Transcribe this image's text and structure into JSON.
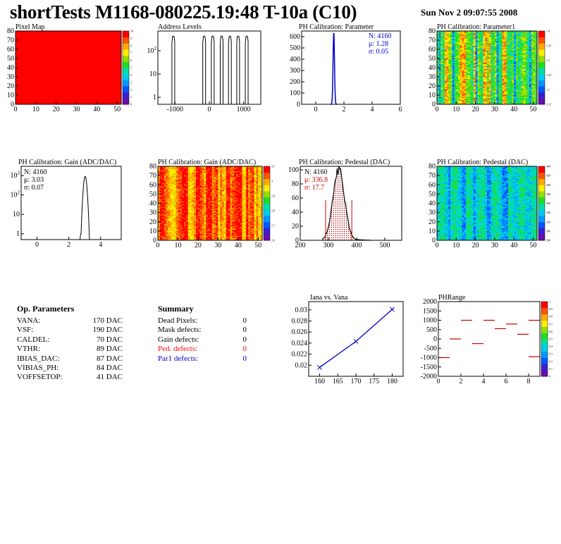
{
  "header": {
    "title": "shortTests M1168-080225.19:48 T-10a (C10)",
    "date": "Sun Nov  2 09:07:55 2008"
  },
  "palette": [
    "#6a0dad",
    "#3a1fd0",
    "#0055ff",
    "#0099ff",
    "#00ccee",
    "#00e0a0",
    "#22dd22",
    "#99dd00",
    "#ffee00",
    "#ffaa00",
    "#ff5500",
    "#ff0000"
  ],
  "chart_data": [
    {
      "id": "pixel_map",
      "type": "heatmap",
      "title": "Pixel Map",
      "xlim": [
        0,
        52
      ],
      "ylim": [
        0,
        80
      ],
      "x_ticks": [
        "0",
        "10",
        "20",
        "30",
        "40",
        "50"
      ],
      "y_ticks": [
        "0",
        "10",
        "20",
        "30",
        "40",
        "50",
        "60",
        "70",
        "80"
      ],
      "uniform_value": 10,
      "fill": "#ff0000",
      "colorbar_ticks": [
        "0",
        "1",
        "2",
        "3",
        "4",
        "5",
        "6",
        "7",
        "8",
        "9",
        "10"
      ]
    },
    {
      "id": "address_levels",
      "type": "bar",
      "title": "Address Levels",
      "yscale": "log",
      "xlim": [
        -1500,
        1500
      ],
      "x_ticks": [
        "-1000",
        "0",
        "1000"
      ],
      "y_ticks": [
        "1",
        "10",
        "10^2"
      ],
      "peaks_x": [
        -1050,
        -150,
        100,
        360,
        600,
        840,
        1090
      ],
      "peak_height": 420
    },
    {
      "id": "ph_parameter",
      "type": "bar",
      "title": "PH Calibration: Parameter",
      "xlim": [
        -1,
        6
      ],
      "ylim": [
        0,
        650
      ],
      "x_ticks": [
        "0",
        "2",
        "4",
        "6"
      ],
      "y_ticks": [
        "0",
        "100",
        "200",
        "300",
        "400",
        "500",
        "600"
      ],
      "mean": 1.28,
      "sigma": 0.05,
      "peak": 640,
      "stats": {
        "entries": "N: 4160",
        "mean": "μ: 1.28",
        "sigma": "σ: 0.05"
      },
      "color": "#0000cc"
    },
    {
      "id": "ph_parameter1",
      "type": "heatmap",
      "title": "PH Calibration: Parameter1",
      "xlim": [
        0,
        52
      ],
      "ylim": [
        0,
        80
      ],
      "x_ticks": [
        "0",
        "10",
        "20",
        "30",
        "40",
        "50"
      ],
      "y_ticks": [
        "0",
        "10",
        "20",
        "30",
        "40",
        "50",
        "60",
        "70",
        "80"
      ],
      "colorbar_ticks": [
        "1.15",
        "1.2",
        "1.25",
        "1.3",
        "1.35",
        "1.4"
      ],
      "hot_columns": [
        4,
        5,
        12,
        13,
        14,
        19,
        24,
        25,
        27,
        34,
        35
      ],
      "cold_columns": [
        1,
        8,
        20,
        31,
        40,
        48
      ]
    },
    {
      "id": "ph_gain_hist",
      "type": "bar",
      "title": "PH Calibration: Gain (ADC/DAC)",
      "yscale": "log",
      "xlim": [
        -1,
        5.3
      ],
      "x_ticks": [
        "0",
        "2",
        "4"
      ],
      "y_ticks": [
        "1",
        "10",
        "10^2",
        "10^3"
      ],
      "mean": 3.03,
      "sigma": 0.07,
      "peak": 900,
      "stats": {
        "entries": "N: 4160",
        "mean": "μ: 3.03",
        "sigma": "σ: 0.07"
      }
    },
    {
      "id": "ph_gain_map",
      "type": "heatmap",
      "title": "PH Calibration: Gain (ADC/DAC)",
      "xlim": [
        0,
        52
      ],
      "ylim": [
        0,
        80
      ],
      "x_ticks": [
        "0",
        "10",
        "20",
        "30",
        "40",
        "50"
      ],
      "y_ticks": [
        "0",
        "10",
        "20",
        "30",
        "40",
        "50",
        "60",
        "70",
        "80"
      ],
      "colorbar_ticks": [
        "2.6",
        "2.7",
        "2.8",
        "2.9",
        "3",
        "3.1"
      ],
      "hot_columns": [
        1,
        2,
        12,
        13,
        14,
        19,
        20,
        24,
        25,
        26,
        34,
        35,
        39,
        40,
        41,
        44
      ],
      "cold_columns": [
        8,
        30,
        48,
        50
      ]
    },
    {
      "id": "ph_pedestal_hist",
      "type": "bar",
      "title": "PH Calibration: Pedestal (DAC)",
      "xlim": [
        200,
        560
      ],
      "ylim": [
        0,
        105
      ],
      "x_ticks": [
        "200",
        "300",
        "400",
        "500"
      ],
      "y_ticks": [
        "0",
        "20",
        "40",
        "60",
        "80",
        "100"
      ],
      "mean": 336.8,
      "sigma": 17.7,
      "peak": 100,
      "cut_lines_x": [
        290,
        383
      ],
      "stats": {
        "entries": "N: 4160",
        "mean": "μ: 336.8",
        "sigma": "σ: 17.7"
      },
      "fill_color": "#aa0000"
    },
    {
      "id": "ph_pedestal_map",
      "type": "heatmap",
      "title": "PH Calibration: Pedestal (DAC)",
      "xlim": [
        0,
        52
      ],
      "ylim": [
        0,
        80
      ],
      "x_ticks": [
        "0",
        "10",
        "20",
        "30",
        "40",
        "50"
      ],
      "y_ticks": [
        "0",
        "10",
        "20",
        "30",
        "40",
        "50",
        "60",
        "70",
        "80"
      ],
      "colorbar_ticks": [
        "280",
        "300",
        "320",
        "340",
        "360",
        "380",
        "400",
        "420",
        "440"
      ],
      "hot_columns": [],
      "cold_columns": [
        6,
        13,
        14,
        19,
        26,
        27,
        34,
        35,
        36
      ]
    },
    {
      "id": "iana_vs_vana",
      "type": "line",
      "title": "Iana vs. Vana",
      "xlim": [
        157,
        183
      ],
      "ylim": [
        0.018,
        0.0315
      ],
      "x_ticks": [
        "160",
        "165",
        "170",
        "175",
        "180"
      ],
      "y_ticks": [
        "0.02",
        "0.022",
        "0.024",
        "0.026",
        "0.028",
        "0.03"
      ],
      "x": [
        160,
        170,
        180
      ],
      "y": [
        0.0196,
        0.0243,
        0.0301
      ],
      "color": "#0000cc"
    },
    {
      "id": "phrange",
      "type": "scatter",
      "title": "PHRange",
      "xlim": [
        0,
        9
      ],
      "ylim": [
        -2000,
        2000
      ],
      "x_ticks": [
        "0",
        "2",
        "4",
        "6",
        "8"
      ],
      "y_ticks": [
        "-2000",
        "-1500",
        "-1000",
        "-500",
        "0",
        "500",
        "1000",
        "1500",
        "2000"
      ],
      "segments": [
        [
          0.5,
          -1000
        ],
        [
          1.5,
          0
        ],
        [
          2.5,
          1000
        ],
        [
          3.5,
          -250
        ],
        [
          4.5,
          1000
        ],
        [
          5.5,
          550
        ],
        [
          6.5,
          800
        ],
        [
          7.5,
          250
        ],
        [
          8.5,
          1000
        ],
        [
          8.5,
          -950
        ]
      ],
      "colorbar_ticks": [
        "0",
        "0.1",
        "0.2",
        "0.3",
        "0.4",
        "0.5",
        "0.6",
        "0.7",
        "0.8",
        "0.9",
        "1"
      ],
      "color": "#cc0000"
    }
  ],
  "params": {
    "heading": "Op. Parameters",
    "rows": [
      {
        "name": "VANA:",
        "value": "170 DAC"
      },
      {
        "name": "VSF:",
        "value": "190 DAC"
      },
      {
        "name": "CALDEL:",
        "value": "70 DAC"
      },
      {
        "name": "VTHR:",
        "value": "89 DAC"
      },
      {
        "name": "IBIAS_DAC:",
        "value": "87 DAC"
      },
      {
        "name": "VIBIAS_PH:",
        "value": "84 DAC"
      },
      {
        "name": "VOFFSETOP:",
        "value": "41 DAC"
      }
    ]
  },
  "summary": {
    "heading": "Summary",
    "rows": [
      {
        "name": "Dead Pixels:",
        "value": "0",
        "color": "#000000"
      },
      {
        "name": "Mask defects:",
        "value": "0",
        "color": "#000000"
      },
      {
        "name": "Gain defects:",
        "value": "0",
        "color": "#000000"
      },
      {
        "name": "Ped. defects:",
        "value": "0",
        "color": "#ff0000"
      },
      {
        "name": "Par1 defects:",
        "value": "0",
        "color": "#0000cc"
      }
    ]
  }
}
